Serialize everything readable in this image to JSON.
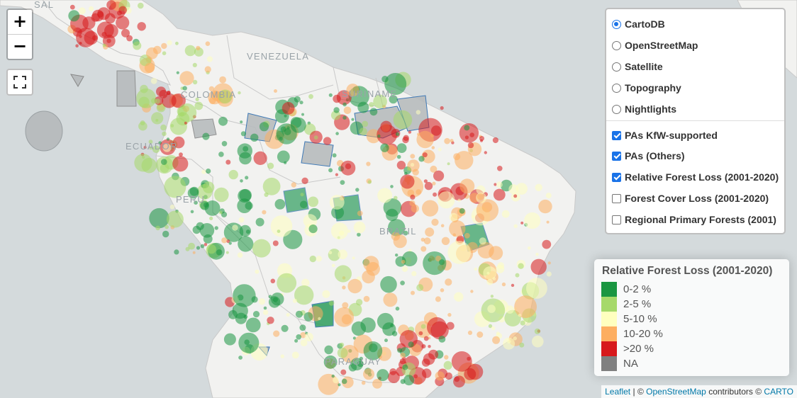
{
  "map": {
    "country_labels": [
      "VENEZUELA",
      "COLOMBIA",
      "SURINAME",
      "ECUADOR",
      "PERU",
      "BRAZIL",
      "PARAGUAY",
      "SAL"
    ],
    "colors": {
      "ocean": "#d4dadc",
      "land": "#f2f2f0",
      "border": "#c9c9c9",
      "pa_fill": "#b8bcbe",
      "pa_kfw_outline": "#2b6cb0"
    }
  },
  "controls": {
    "zoom_in": "+",
    "zoom_out": "−",
    "fullscreen_icon": "fullscreen-icon"
  },
  "layers": {
    "base": [
      {
        "label": "CartoDB",
        "checked": true
      },
      {
        "label": "OpenStreetMap",
        "checked": false
      },
      {
        "label": "Satellite",
        "checked": false
      },
      {
        "label": "Topography",
        "checked": false
      },
      {
        "label": "Nightlights",
        "checked": false
      }
    ],
    "overlays": [
      {
        "label": "PAs KfW-supported",
        "checked": true
      },
      {
        "label": "PAs (Others)",
        "checked": true
      },
      {
        "label": "Relative Forest Loss (2001-2020)",
        "checked": true
      },
      {
        "label": "Forest Cover Loss (2001-2020)",
        "checked": false
      },
      {
        "label": "Regional Primary Forests (2001)",
        "checked": false
      }
    ]
  },
  "legend": {
    "title": "Relative Forest Loss (2001-2020)",
    "items": [
      {
        "label": "0-2 %",
        "color": "#1a9641"
      },
      {
        "label": "2-5 %",
        "color": "#a6d96a"
      },
      {
        "label": "5-10 %",
        "color": "#ffffbf"
      },
      {
        "label": "10-20 %",
        "color": "#fdae61"
      },
      {
        "label": ">20 %",
        "color": "#d7191c"
      },
      {
        "label": "NA",
        "color": "#808080"
      }
    ]
  },
  "attribution": {
    "leaflet": "Leaflet",
    "sep": "|",
    "copyright": "©",
    "osm": "OpenStreetMap",
    "contributors": "contributors ©",
    "carto": "CARTO"
  }
}
